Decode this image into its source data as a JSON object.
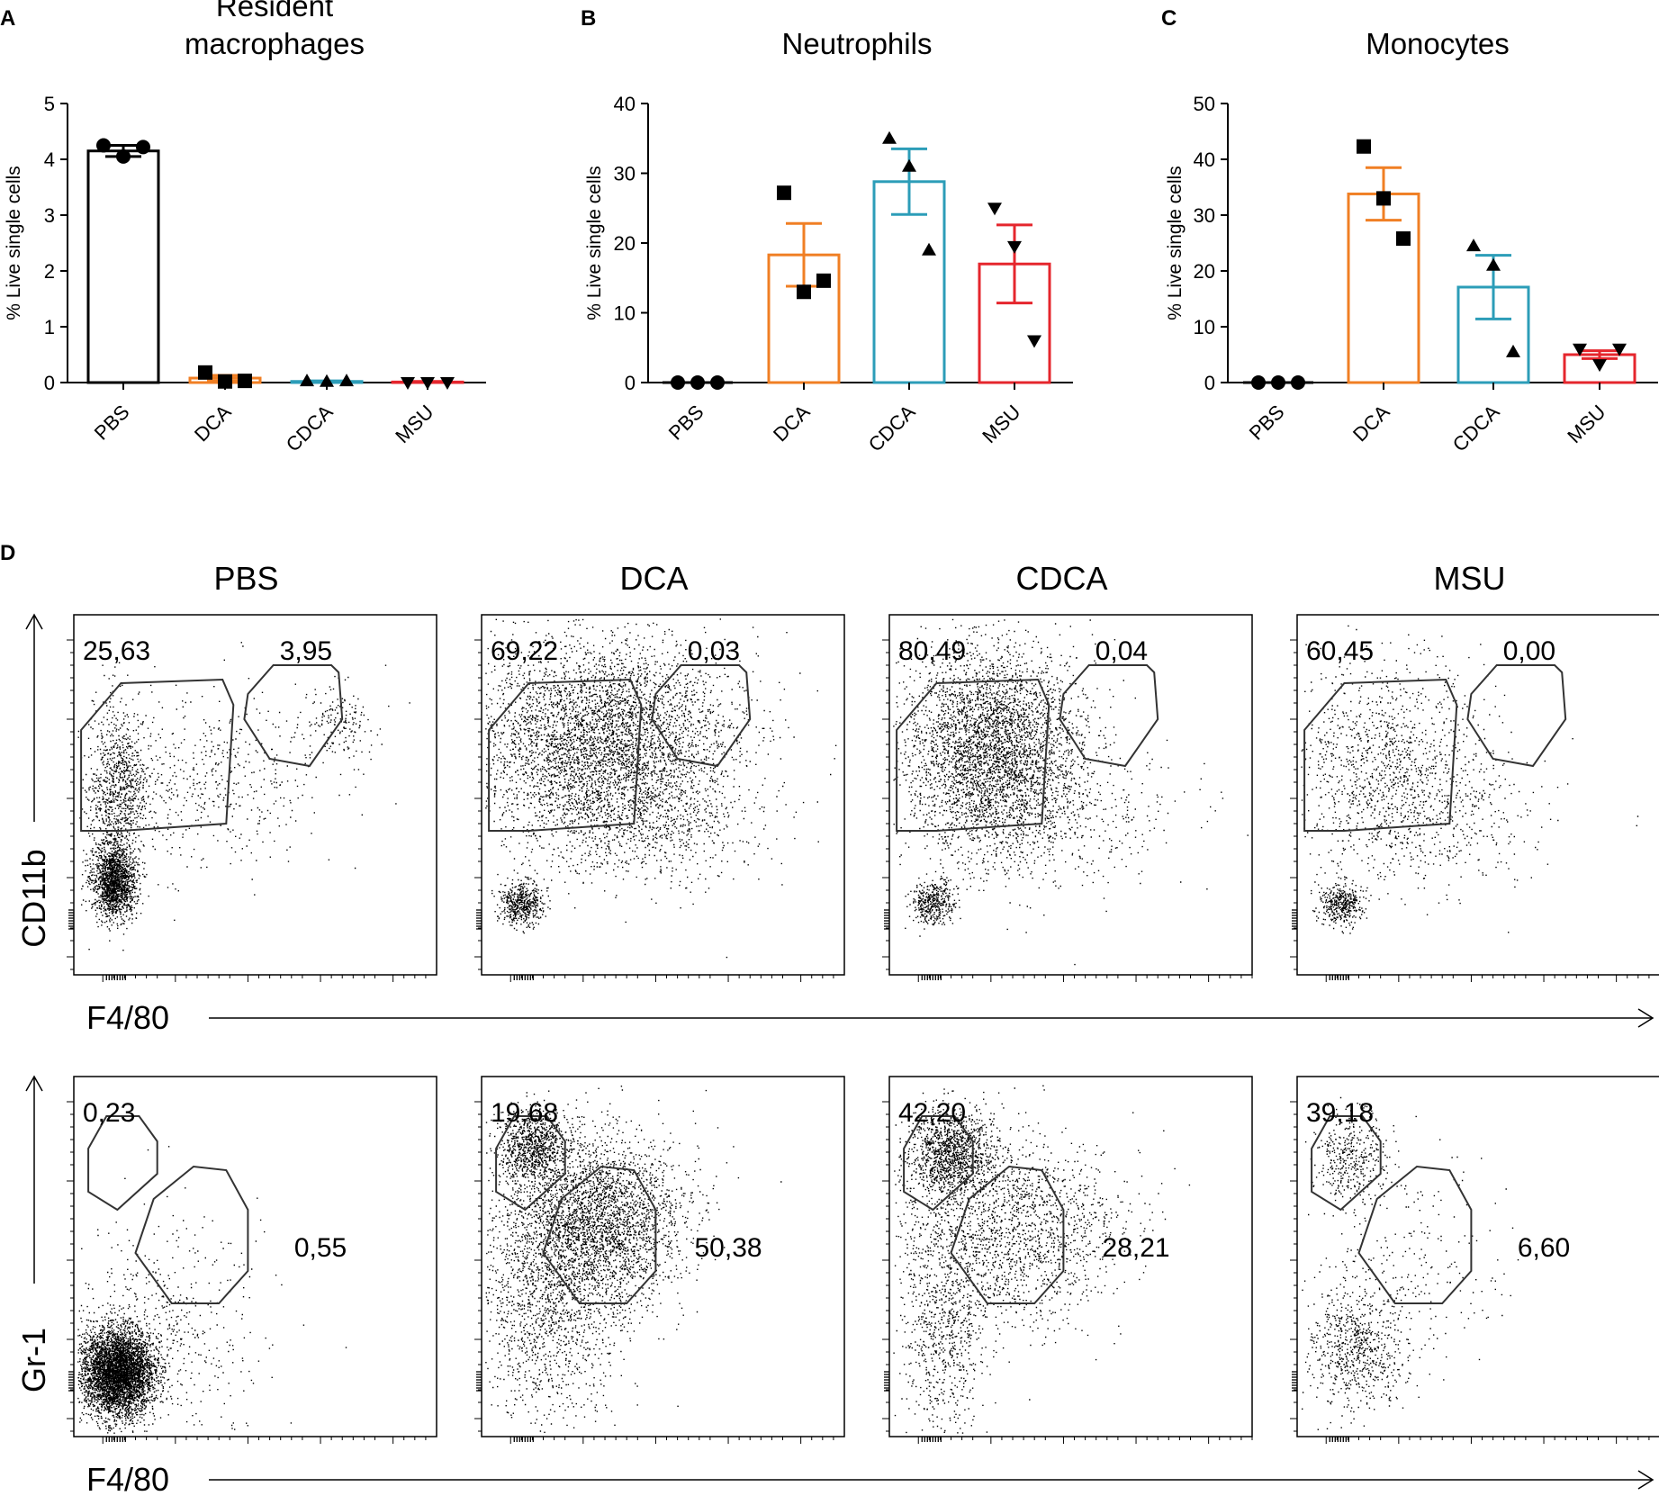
{
  "chart_data": [
    {
      "panel": "A",
      "type": "bar",
      "title": "Resident macrophages",
      "title_lines": [
        "Resident",
        "macrophages"
      ],
      "ylabel": "% Live single cells",
      "xlabel": "",
      "ylim": [
        0,
        5
      ],
      "yticks": [
        "0",
        "1",
        "2",
        "3",
        "4",
        "5"
      ],
      "categories": [
        "PBS",
        "DCA",
        "CDCA",
        "MSU"
      ],
      "colors": [
        "#000000",
        "#F07F24",
        "#2C9DB8",
        "#E5262D"
      ],
      "markers": [
        "circle",
        "square",
        "triangle",
        "triangle-down"
      ],
      "means": [
        4.15,
        0.08,
        0.02,
        0.01
      ],
      "sem": [
        0.1,
        0.05,
        0.01,
        0.01
      ],
      "points": [
        [
          4.25,
          4.05,
          4.22
        ],
        [
          0.18,
          0.02,
          0.03
        ],
        [
          0.03,
          0.02,
          0.03
        ],
        [
          0.0,
          0.0,
          0.0
        ]
      ]
    },
    {
      "panel": "B",
      "type": "bar",
      "title": "Neutrophils",
      "title_lines": [
        "Neutrophils"
      ],
      "ylabel": "% Live single cells",
      "xlabel": "",
      "ylim": [
        0,
        40
      ],
      "yticks": [
        "0",
        "10",
        "20",
        "30",
        "40"
      ],
      "categories": [
        "PBS",
        "DCA",
        "CDCA",
        "MSU"
      ],
      "colors": [
        "#000000",
        "#F07F24",
        "#2C9DB8",
        "#E5262D"
      ],
      "markers": [
        "circle",
        "square",
        "triangle",
        "triangle-down"
      ],
      "means": [
        0.0,
        18.3,
        28.8,
        17.0
      ],
      "sem": [
        0.0,
        4.5,
        4.7,
        5.6
      ],
      "points": [
        [
          0,
          0,
          0
        ],
        [
          27.2,
          13.0,
          14.6
        ],
        [
          35.0,
          31.0,
          19.0
        ],
        [
          25.0,
          19.5,
          6.0
        ]
      ]
    },
    {
      "panel": "C",
      "type": "bar",
      "title": "Monocytes",
      "title_lines": [
        "Monocytes"
      ],
      "ylabel": "% Live single cells",
      "xlabel": "",
      "ylim": [
        0,
        50
      ],
      "yticks": [
        "0",
        "10",
        "20",
        "30",
        "40",
        "50"
      ],
      "categories": [
        "PBS",
        "DCA",
        "CDCA",
        "MSU"
      ],
      "colors": [
        "#000000",
        "#F07F24",
        "#2C9DB8",
        "#E5262D"
      ],
      "markers": [
        "circle",
        "square",
        "triangle",
        "triangle-down"
      ],
      "means": [
        0.0,
        33.8,
        17.1,
        5.0
      ],
      "sem": [
        0.0,
        4.7,
        5.7,
        0.7
      ],
      "points": [
        [
          0,
          0,
          0
        ],
        [
          42.3,
          33.0,
          25.8
        ],
        [
          24.5,
          21.0,
          5.5
        ],
        [
          6.0,
          3.2,
          6.0
        ]
      ]
    }
  ],
  "flow_panel": {
    "label": "D",
    "conditions": [
      "PBS",
      "DCA",
      "CDCA",
      "MSU"
    ],
    "rows": [
      {
        "yaxis": "CD11b",
        "xaxis": "F4/80",
        "left_values": [
          "25,63",
          "69,22",
          "80,49",
          "60,45"
        ],
        "right_values": [
          "3,95",
          "0,03",
          "0,04",
          "0,00"
        ]
      },
      {
        "yaxis": "Gr-1",
        "xaxis": "F4/80",
        "left_values": [
          "0,23",
          "19,68",
          "42,20",
          "39,18"
        ],
        "right_values": [
          "0,55",
          "50,38",
          "28,21",
          "6,60"
        ]
      }
    ]
  }
}
